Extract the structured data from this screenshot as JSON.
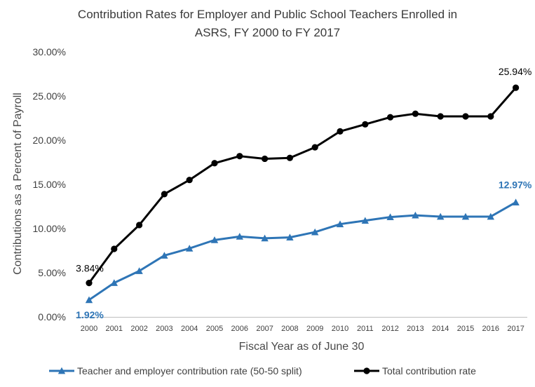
{
  "chart_data": {
    "type": "line",
    "title_line1": "Contribution Rates for Employer and  Public School Teachers Enrolled in",
    "title_line2": "ASRS, FY 2000 to FY 2017",
    "xlabel": "Fiscal Year as of June 30",
    "ylabel": "Contributions as a Percent of Payroll",
    "ylim": [
      0,
      30
    ],
    "y_ticks": [
      "0.00%",
      "5.00%",
      "10.00%",
      "15.00%",
      "20.00%",
      "25.00%",
      "30.00%"
    ],
    "categories": [
      "2000",
      "2001",
      "2002",
      "2003",
      "2004",
      "2005",
      "2006",
      "2007",
      "2008",
      "2009",
      "2010",
      "2011",
      "2012",
      "2013",
      "2014",
      "2015",
      "2016",
      "2017"
    ],
    "grid": false,
    "legend_position": "bottom",
    "series": [
      {
        "name": "Teacher and employer contribution rate (50-50 split)",
        "color": "#2e75b6",
        "marker": "triangle",
        "values": [
          1.92,
          3.85,
          5.2,
          6.95,
          7.75,
          8.7,
          9.1,
          8.9,
          9.0,
          9.6,
          10.5,
          10.9,
          11.3,
          11.5,
          11.35,
          11.35,
          11.35,
          12.97
        ],
        "labels": [
          {
            "index": 0,
            "text": "1.92%"
          },
          {
            "index": 17,
            "text": "12.97%"
          }
        ]
      },
      {
        "name": "Total contribution rate",
        "color": "#000000",
        "marker": "circle",
        "values": [
          3.84,
          7.7,
          10.4,
          13.9,
          15.5,
          17.4,
          18.2,
          17.9,
          18.0,
          19.2,
          21.0,
          21.8,
          22.6,
          23.0,
          22.7,
          22.7,
          22.7,
          25.94
        ],
        "labels": [
          {
            "index": 0,
            "text": "3.84%"
          },
          {
            "index": 17,
            "text": "25.94%"
          }
        ]
      }
    ]
  }
}
